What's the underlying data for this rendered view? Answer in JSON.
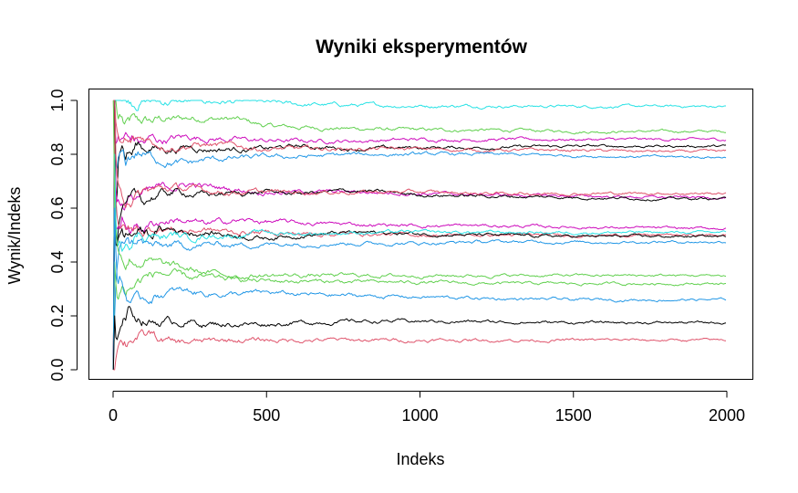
{
  "chart_data": {
    "type": "line",
    "title": "Wyniki eksperymentów",
    "xlabel": "Indeks",
    "ylabel": "Wynik/Indeks",
    "xlim": [
      0,
      2000
    ],
    "ylim": [
      0,
      1
    ],
    "x_ticks": [
      "0",
      "500",
      "1000",
      "1500",
      "2000"
    ],
    "y_ticks": [
      "0.0",
      "0.2",
      "0.4",
      "0.6",
      "0.8",
      "1.0"
    ],
    "grid": false,
    "legend": "none",
    "x": [
      1,
      5,
      10,
      15,
      20,
      30,
      40,
      50,
      60,
      80,
      100,
      125,
      150,
      200,
      250,
      300,
      400,
      500,
      600,
      800,
      1000,
      1200,
      1500,
      1800,
      2000
    ],
    "series": [
      {
        "color": "#61D04F",
        "values": [
          0.0,
          1.0,
          1.0,
          0.92,
          0.95,
          0.93,
          0.9,
          0.91,
          0.92,
          0.91,
          0.92,
          0.92,
          0.93,
          0.93,
          0.935,
          0.935,
          0.93,
          0.905,
          0.9,
          0.895,
          0.89,
          0.89,
          0.885,
          0.885,
          0.885
        ]
      },
      {
        "color": "#28E2E5",
        "values": [
          1.0,
          1.0,
          1.0,
          1.0,
          1.0,
          1.0,
          1.0,
          1.0,
          1.0,
          1.0,
          1.0,
          1.0,
          0.995,
          0.995,
          0.995,
          0.995,
          0.995,
          0.99,
          0.985,
          0.982,
          0.98,
          0.98,
          0.978,
          0.978,
          0.978
        ]
      },
      {
        "color": "#CD0BBC",
        "values": [
          0.0,
          1.0,
          0.8,
          0.88,
          0.85,
          0.86,
          0.87,
          0.85,
          0.86,
          0.85,
          0.84,
          0.86,
          0.85,
          0.86,
          0.865,
          0.86,
          0.855,
          0.85,
          0.85,
          0.85,
          0.855,
          0.855,
          0.855,
          0.855,
          0.855
        ]
      },
      {
        "color": "#000000",
        "values": [
          0.0,
          1.0,
          0.5,
          0.75,
          0.8,
          0.83,
          0.79,
          0.81,
          0.8,
          0.84,
          0.82,
          0.83,
          0.82,
          0.82,
          0.83,
          0.82,
          0.82,
          0.82,
          0.83,
          0.82,
          0.825,
          0.825,
          0.83,
          0.83,
          0.83
        ]
      },
      {
        "color": "#DF536B",
        "values": [
          0.0,
          1.0,
          0.9,
          0.88,
          0.85,
          0.84,
          0.85,
          0.83,
          0.84,
          0.85,
          0.86,
          0.85,
          0.84,
          0.83,
          0.835,
          0.835,
          0.83,
          0.82,
          0.82,
          0.82,
          0.82,
          0.815,
          0.815,
          0.81,
          0.81
        ]
      },
      {
        "color": "#2297E6",
        "values": [
          0.0,
          1.0,
          0.7,
          0.78,
          0.8,
          0.82,
          0.78,
          0.79,
          0.8,
          0.81,
          0.8,
          0.79,
          0.78,
          0.77,
          0.765,
          0.78,
          0.785,
          0.79,
          0.79,
          0.8,
          0.8,
          0.8,
          0.795,
          0.79,
          0.79
        ]
      },
      {
        "color": "#CD0BBC",
        "values": [
          0.0,
          1.0,
          0.6,
          0.64,
          0.62,
          0.6,
          0.61,
          0.63,
          0.62,
          0.64,
          0.65,
          0.66,
          0.67,
          0.68,
          0.69,
          0.68,
          0.67,
          0.66,
          0.66,
          0.66,
          0.655,
          0.65,
          0.645,
          0.64,
          0.64
        ]
      },
      {
        "color": "#000000",
        "values": [
          0.0,
          1.0,
          0.4,
          0.5,
          0.55,
          0.6,
          0.58,
          0.6,
          0.61,
          0.63,
          0.62,
          0.64,
          0.65,
          0.66,
          0.655,
          0.65,
          0.655,
          0.66,
          0.655,
          0.665,
          0.65,
          0.645,
          0.64,
          0.635,
          0.635
        ]
      },
      {
        "color": "#DF536B",
        "values": [
          1.0,
          1.0,
          0.75,
          0.7,
          0.68,
          0.66,
          0.65,
          0.66,
          0.65,
          0.65,
          0.66,
          0.665,
          0.67,
          0.675,
          0.67,
          0.665,
          0.66,
          0.66,
          0.66,
          0.66,
          0.66,
          0.655,
          0.655,
          0.655,
          0.655
        ]
      },
      {
        "color": "#CD0BBC",
        "values": [
          0.0,
          0.6,
          0.5,
          0.54,
          0.52,
          0.55,
          0.53,
          0.54,
          0.53,
          0.54,
          0.53,
          0.54,
          0.55,
          0.56,
          0.55,
          0.54,
          0.555,
          0.55,
          0.545,
          0.54,
          0.535,
          0.535,
          0.53,
          0.525,
          0.525
        ]
      },
      {
        "color": "#DF536B",
        "values": [
          1.0,
          0.8,
          0.6,
          0.55,
          0.53,
          0.52,
          0.53,
          0.52,
          0.51,
          0.52,
          0.51,
          0.52,
          0.53,
          0.52,
          0.515,
          0.52,
          0.51,
          0.51,
          0.505,
          0.505,
          0.5,
          0.5,
          0.5,
          0.5,
          0.5
        ]
      },
      {
        "color": "#000000",
        "values": [
          0.0,
          0.5,
          0.45,
          0.48,
          0.5,
          0.52,
          0.5,
          0.51,
          0.5,
          0.52,
          0.51,
          0.5,
          0.52,
          0.52,
          0.51,
          0.51,
          0.5,
          0.49,
          0.5,
          0.51,
          0.505,
          0.5,
          0.495,
          0.495,
          0.495
        ]
      },
      {
        "color": "#28E2E5",
        "values": [
          0.0,
          0.8,
          0.5,
          0.45,
          0.48,
          0.46,
          0.49,
          0.5,
          0.49,
          0.51,
          0.5,
          0.51,
          0.49,
          0.5,
          0.49,
          0.5,
          0.5,
          0.51,
          0.505,
          0.51,
          0.51,
          0.51,
          0.51,
          0.51,
          0.51
        ]
      },
      {
        "color": "#2297E6",
        "values": [
          0.0,
          0.2,
          0.35,
          0.4,
          0.45,
          0.48,
          0.5,
          0.48,
          0.47,
          0.49,
          0.47,
          0.46,
          0.455,
          0.46,
          0.46,
          0.465,
          0.465,
          0.465,
          0.47,
          0.47,
          0.47,
          0.475,
          0.475,
          0.475,
          0.475
        ]
      },
      {
        "color": "#61D04F",
        "values": [
          1.0,
          0.6,
          0.5,
          0.45,
          0.43,
          0.42,
          0.4,
          0.41,
          0.42,
          0.4,
          0.41,
          0.4,
          0.39,
          0.38,
          0.37,
          0.36,
          0.35,
          0.35,
          0.35,
          0.35,
          0.35,
          0.35,
          0.35,
          0.35,
          0.35
        ]
      },
      {
        "color": "#61D04F",
        "values": [
          0.0,
          0.4,
          0.3,
          0.25,
          0.28,
          0.3,
          0.27,
          0.29,
          0.3,
          0.32,
          0.34,
          0.35,
          0.36,
          0.35,
          0.34,
          0.34,
          0.335,
          0.33,
          0.33,
          0.325,
          0.325,
          0.32,
          0.32,
          0.32,
          0.32
        ]
      },
      {
        "color": "#2297E6",
        "values": [
          0.0,
          0.6,
          0.4,
          0.3,
          0.35,
          0.32,
          0.28,
          0.27,
          0.26,
          0.25,
          0.26,
          0.27,
          0.28,
          0.29,
          0.29,
          0.285,
          0.28,
          0.285,
          0.28,
          0.275,
          0.27,
          0.265,
          0.26,
          0.26,
          0.26
        ]
      },
      {
        "color": "#000000",
        "values": [
          0.0,
          0.2,
          0.1,
          0.12,
          0.14,
          0.18,
          0.2,
          0.22,
          0.21,
          0.2,
          0.19,
          0.18,
          0.18,
          0.18,
          0.18,
          0.17,
          0.17,
          0.17,
          0.175,
          0.18,
          0.18,
          0.178,
          0.175,
          0.175,
          0.175
        ]
      },
      {
        "color": "#DF536B",
        "values": [
          0.0,
          0.0,
          0.05,
          0.08,
          0.1,
          0.12,
          0.11,
          0.12,
          0.13,
          0.13,
          0.12,
          0.13,
          0.11,
          0.1,
          0.1,
          0.105,
          0.11,
          0.11,
          0.11,
          0.11,
          0.11,
          0.11,
          0.11,
          0.11,
          0.11
        ]
      }
    ]
  }
}
